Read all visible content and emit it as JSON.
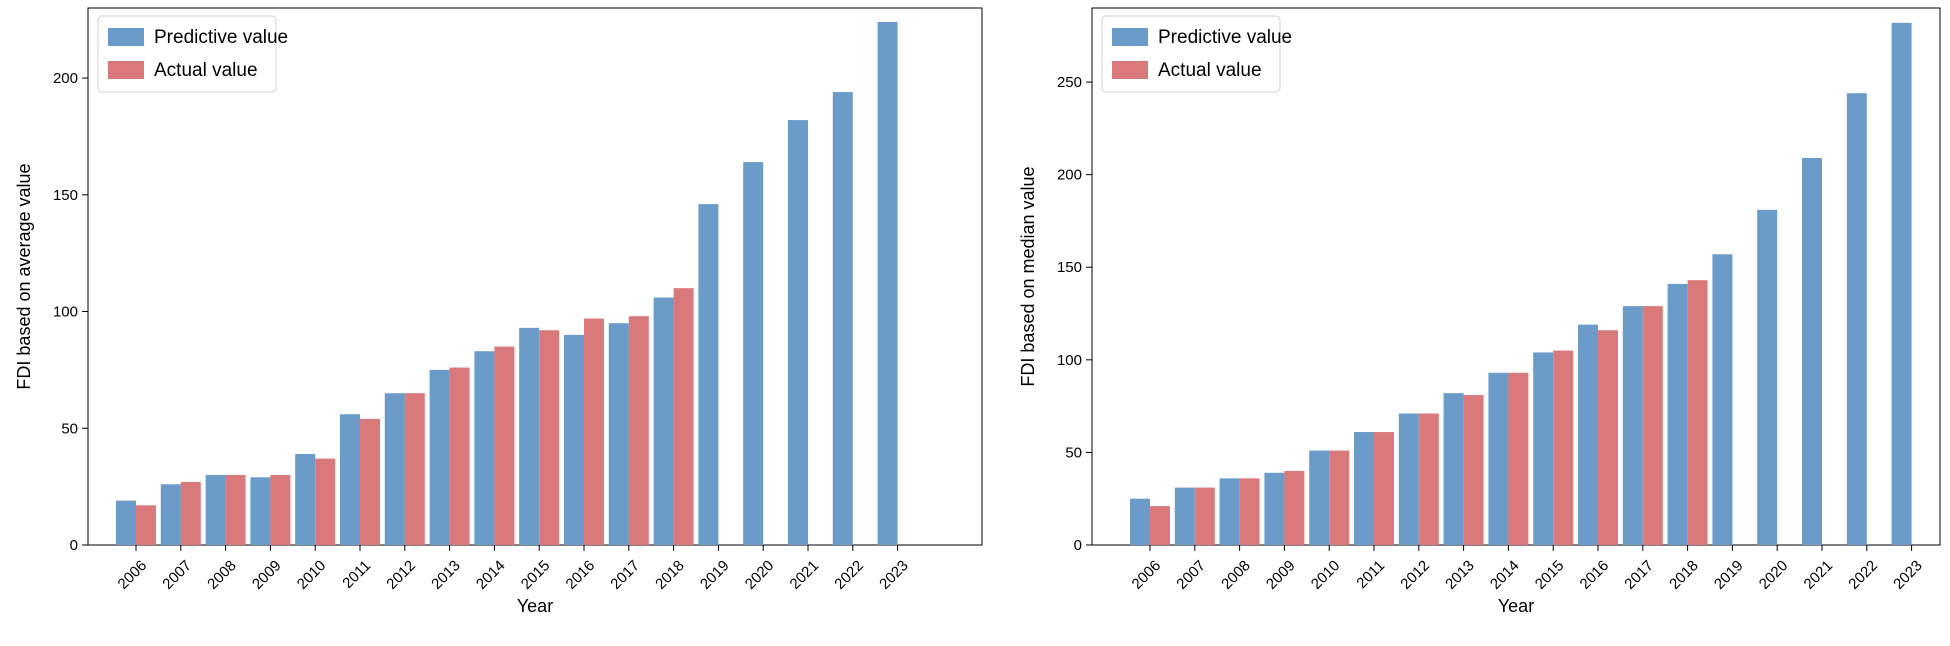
{
  "chart_data": [
    {
      "type": "bar",
      "title": "",
      "xlabel": "Year",
      "ylabel": "FDI based on average value",
      "ylim": [
        0,
        230
      ],
      "yticks": [
        0,
        50,
        100,
        150,
        200
      ],
      "categories": [
        "2006",
        "2007",
        "2008",
        "2009",
        "2010",
        "2011",
        "2012",
        "2013",
        "2014",
        "2015",
        "2016",
        "2017",
        "2018",
        "2019",
        "2020",
        "2021",
        "2022",
        "2023"
      ],
      "series": [
        {
          "name": "Predictive value",
          "color": "#6b9bc8",
          "values": [
            19,
            26,
            30,
            29,
            39,
            56,
            65,
            75,
            83,
            93,
            90,
            95,
            106,
            146,
            164,
            182,
            194,
            224
          ]
        },
        {
          "name": "Actual value",
          "color": "#d9797b",
          "values": [
            17,
            27,
            30,
            30,
            37,
            54,
            65,
            76,
            85,
            92,
            97,
            98,
            110,
            null,
            null,
            null,
            null,
            null
          ]
        }
      ],
      "legend": "upper-left"
    },
    {
      "type": "bar",
      "title": "",
      "xlabel": "Year",
      "ylabel": "FDI based on median value",
      "ylim": [
        0,
        290
      ],
      "yticks": [
        0,
        50,
        100,
        150,
        200,
        250
      ],
      "categories": [
        "2006",
        "2007",
        "2008",
        "2009",
        "2010",
        "2011",
        "2012",
        "2013",
        "2014",
        "2015",
        "2016",
        "2017",
        "2018",
        "2019",
        "2020",
        "2021",
        "2022",
        "2023"
      ],
      "series": [
        {
          "name": "Predictive value",
          "color": "#6b9bc8",
          "values": [
            25,
            31,
            36,
            39,
            51,
            61,
            71,
            82,
            93,
            104,
            119,
            129,
            141,
            157,
            181,
            209,
            244,
            282
          ]
        },
        {
          "name": "Actual value",
          "color": "#d9797b",
          "values": [
            21,
            31,
            36,
            40,
            51,
            61,
            71,
            81,
            93,
            105,
            116,
            129,
            143,
            null,
            null,
            null,
            null,
            null
          ]
        }
      ],
      "legend": "upper-left"
    }
  ]
}
